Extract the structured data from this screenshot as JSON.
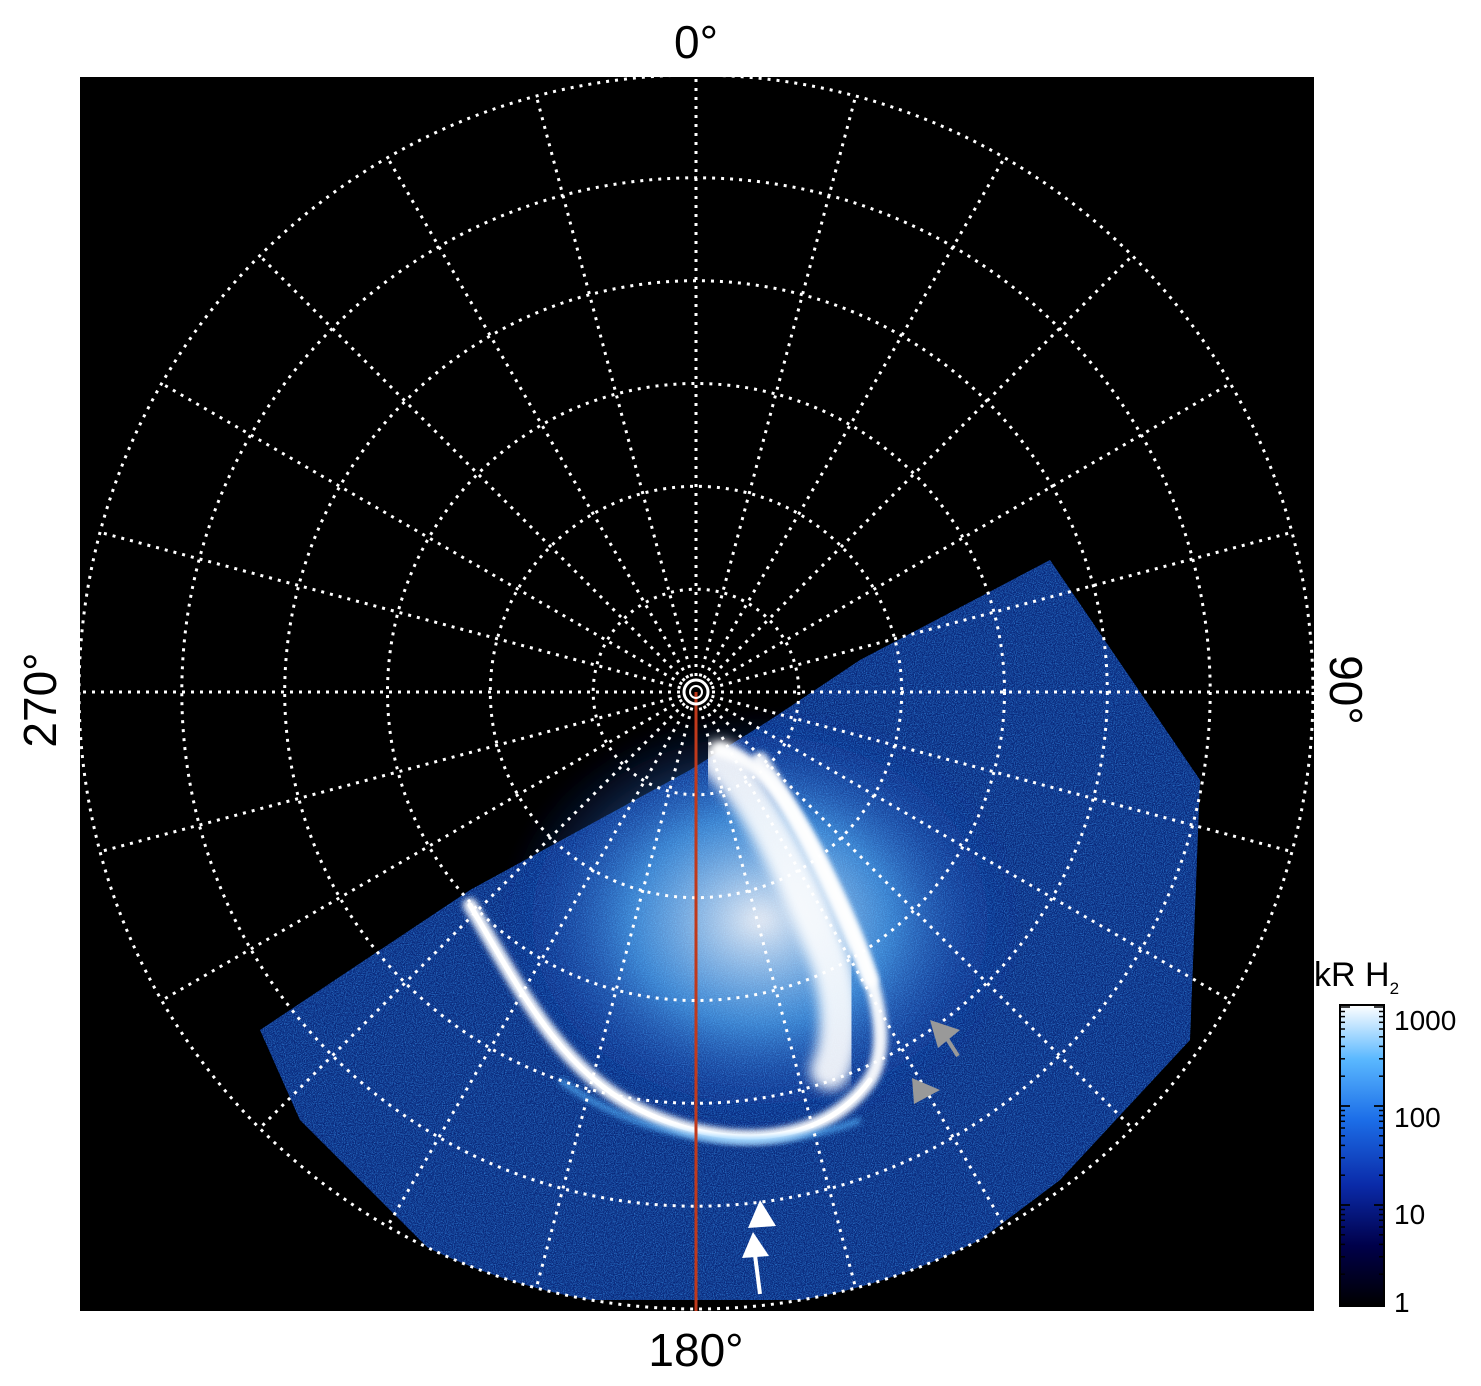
{
  "projection": {
    "type": "polar",
    "direction_labels": {
      "top": "0°",
      "right": "90°",
      "bottom": "180°",
      "left": "270°"
    },
    "spokes": 24,
    "rings": 6,
    "background": "#000000",
    "grid_color": "#ffffff",
    "grid_style": "dotted"
  },
  "meridian_line_color": "#c0391b",
  "colorbar": {
    "title_main": "kR H",
    "title_sub": "2",
    "scale": "log",
    "range": [
      1,
      1000
    ],
    "ticks": [
      "1000",
      "100",
      "10",
      "1"
    ],
    "colors": [
      "#000000",
      "#00004a",
      "#0a2aa8",
      "#1c6ee8",
      "#5ab8ff",
      "#ffffff"
    ]
  },
  "markers": [
    {
      "kind": "arrow",
      "color": "#999999",
      "count": 2
    },
    {
      "kind": "arrow",
      "color": "#ffffff",
      "count": 2
    }
  ]
}
